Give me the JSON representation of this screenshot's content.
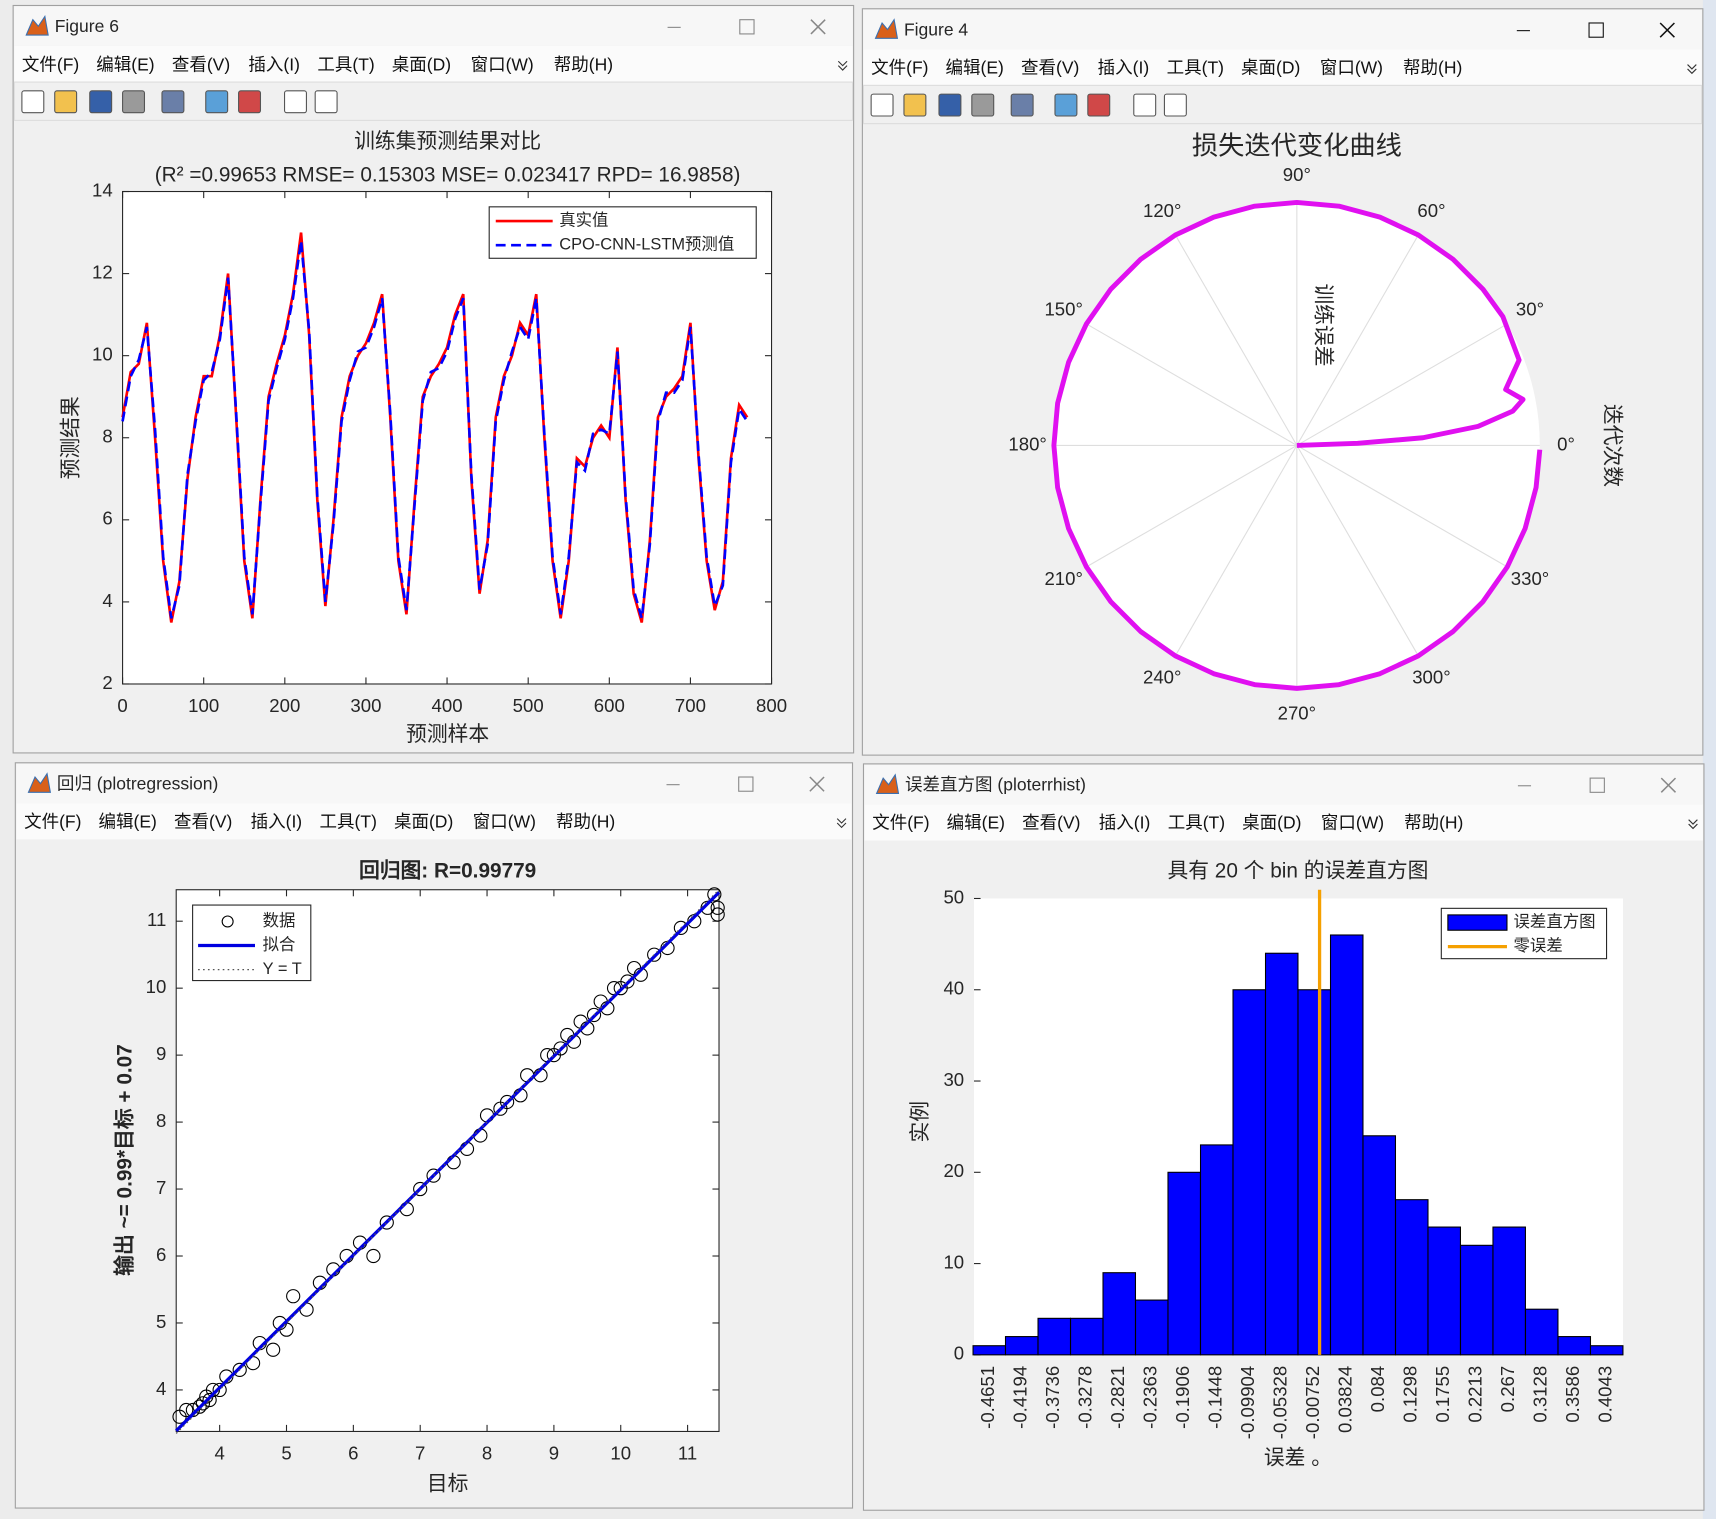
{
  "windows": [
    {
      "title": "Figure 6"
    },
    {
      "title": "Figure 4"
    },
    {
      "title": "回归 (plotregression)"
    },
    {
      "title": "误差直方图 (ploterrhist)"
    }
  ],
  "menu": [
    "文件(F)",
    "编辑(E)",
    "查看(V)",
    "插入(I)",
    "工具(T)",
    "桌面(D)",
    "窗口(W)",
    "帮助(H)"
  ],
  "chart_data": [
    {
      "type": "line",
      "title": "训练集预测结果对比",
      "subtitle": "(R² =0.99653 RMSE= 0.15303 MSE= 0.023417 RPD= 16.9858)",
      "x_label": "预测样本",
      "y_label": "预测结果",
      "xlim": [
        0,
        800
      ],
      "xticks": [
        0,
        100,
        200,
        300,
        400,
        500,
        600,
        700,
        800
      ],
      "ylim": [
        2,
        14
      ],
      "yticks": [
        2,
        4,
        6,
        8,
        10,
        12,
        14
      ],
      "legend": "northeast",
      "x": [
        0,
        10,
        20,
        30,
        40,
        50,
        60,
        70,
        80,
        90,
        100,
        110,
        120,
        130,
        140,
        150,
        160,
        170,
        180,
        190,
        200,
        210,
        220,
        230,
        240,
        250,
        260,
        270,
        280,
        290,
        300,
        310,
        320,
        330,
        340,
        350,
        360,
        370,
        380,
        390,
        400,
        410,
        420,
        430,
        440,
        450,
        460,
        470,
        480,
        490,
        500,
        510,
        520,
        530,
        540,
        550,
        560,
        570,
        580,
        590,
        600,
        610,
        620,
        630,
        640,
        650,
        660,
        670,
        680,
        690,
        700,
        710,
        720,
        730,
        740,
        750,
        760,
        770
      ],
      "series": [
        {
          "name": "真实值",
          "color": "#ff0000",
          "style": "solid",
          "values": [
            8.5,
            9.6,
            9.8,
            10.8,
            8,
            5,
            3.5,
            4.5,
            7,
            8.5,
            9.5,
            9.5,
            10.5,
            12,
            8.5,
            5,
            3.6,
            6.5,
            9,
            9.8,
            10.5,
            11.5,
            13,
            10.5,
            6.5,
            3.9,
            6,
            8.5,
            9.5,
            10,
            10.3,
            10.8,
            11.5,
            8.5,
            5,
            3.7,
            6.5,
            9,
            9.5,
            9.8,
            10.2,
            11,
            11.5,
            7,
            4.2,
            5.5,
            8.5,
            9.5,
            10,
            10.8,
            10.5,
            11.5,
            8,
            5,
            3.6,
            5,
            7.5,
            7.3,
            8,
            8.3,
            8,
            10.2,
            6.5,
            4.2,
            3.5,
            5.5,
            8.5,
            9,
            9.2,
            9.5,
            10.8,
            7.5,
            5,
            3.8,
            4.5,
            7.5,
            8.8,
            8.5
          ]
        },
        {
          "name": "CPO-CNN-LSTM预测值",
          "color": "#0000ff",
          "style": "dashed",
          "values": [
            8.4,
            9.5,
            9.9,
            10.7,
            8.2,
            5.1,
            3.6,
            4.4,
            7.1,
            8.4,
            9.4,
            9.6,
            10.4,
            11.9,
            8.6,
            5.1,
            3.7,
            6.4,
            8.9,
            9.7,
            10.4,
            11.4,
            12.8,
            10.6,
            6.6,
            4.0,
            5.9,
            8.4,
            9.4,
            10.1,
            10.2,
            10.7,
            11.4,
            8.6,
            5.1,
            3.8,
            6.4,
            8.9,
            9.6,
            9.7,
            10.1,
            10.9,
            11.4,
            7.1,
            4.3,
            5.4,
            8.4,
            9.4,
            10.1,
            10.7,
            10.4,
            11.4,
            8.1,
            5.1,
            3.7,
            5.1,
            7.4,
            7.2,
            8.1,
            8.2,
            8.1,
            10.1,
            6.6,
            4.3,
            3.6,
            5.4,
            8.4,
            9.1,
            9.1,
            9.4,
            10.7,
            7.6,
            5.1,
            3.9,
            4.4,
            7.4,
            8.7,
            8.4
          ]
        }
      ]
    },
    {
      "type": "polar",
      "title": "损失迭代变化曲线",
      "r_label": "训练误差",
      "side_label": "迭代次数",
      "rlim": [
        0,
        1
      ],
      "color": "#e010f0",
      "thetaticks": [
        {
          "value": 0,
          "label": "0°"
        },
        {
          "value": 30,
          "label": "30°"
        },
        {
          "value": 60,
          "label": "60°"
        },
        {
          "value": 90,
          "label": "90°"
        },
        {
          "value": 120,
          "label": "120°"
        },
        {
          "value": 150,
          "label": "150°"
        },
        {
          "value": 180,
          "label": "180°"
        },
        {
          "value": 210,
          "label": "210°"
        },
        {
          "value": 240,
          "label": "240°"
        },
        {
          "value": 270,
          "label": "270°"
        },
        {
          "value": 300,
          "label": "300°"
        },
        {
          "value": 330,
          "label": "330°"
        }
      ],
      "theta": [
        0,
        2,
        3.5,
        6,
        9,
        11.5,
        15,
        21,
        32,
        40,
        50,
        60,
        70,
        80,
        90,
        100,
        110,
        120,
        130,
        140,
        150,
        160,
        170,
        180,
        190,
        200,
        210,
        220,
        230,
        240,
        250,
        260,
        270,
        280,
        290,
        300,
        310,
        320,
        330,
        340,
        350,
        359
      ],
      "r": [
        0,
        0.25,
        0.52,
        0.75,
        0.9,
        0.95,
        0.89,
        0.98,
        1,
        1,
        1,
        1,
        1,
        1,
        1,
        1,
        1,
        1,
        1,
        1,
        1,
        1,
        1,
        1,
        1,
        1,
        1,
        1,
        1,
        1,
        1,
        1,
        1,
        1,
        1,
        1,
        1,
        1,
        1,
        1,
        1,
        1
      ]
    },
    {
      "type": "scatter",
      "title": "回归图: R=0.99779",
      "x_label": "目标",
      "y_label": "输出 ~= 0.99*目标 + 0.07",
      "xlim": [
        3.35,
        11.47
      ],
      "xticks": [
        4,
        5,
        6,
        7,
        8,
        9,
        10,
        11
      ],
      "ylim": [
        3.38,
        11.47
      ],
      "yticks": [
        4,
        5,
        6,
        7,
        8,
        9,
        10,
        11
      ],
      "legend": "northwest",
      "series": [
        {
          "name": "数据",
          "kind": "markers",
          "color": "#000000",
          "x": [
            3.4,
            3.5,
            3.6,
            3.7,
            3.75,
            3.8,
            3.85,
            3.9,
            4.0,
            4.1,
            4.3,
            4.5,
            4.6,
            4.8,
            4.9,
            5.0,
            5.1,
            5.3,
            5.5,
            5.7,
            5.9,
            6.1,
            6.3,
            6.5,
            6.8,
            7.0,
            7.2,
            7.5,
            7.7,
            7.9,
            8.0,
            8.2,
            8.3,
            8.5,
            8.6,
            8.8,
            8.9,
            9.0,
            9.1,
            9.2,
            9.3,
            9.4,
            9.5,
            9.6,
            9.7,
            9.8,
            9.9,
            10.0,
            10.1,
            10.2,
            10.3,
            10.5,
            10.7,
            10.9,
            11.1,
            11.3,
            11.4,
            11.45,
            11.45
          ],
          "values": [
            3.6,
            3.7,
            3.7,
            3.75,
            3.8,
            3.9,
            3.85,
            4.0,
            4.0,
            4.2,
            4.3,
            4.4,
            4.7,
            4.6,
            5.0,
            4.9,
            5.4,
            5.2,
            5.6,
            5.8,
            6.0,
            6.2,
            6.0,
            6.5,
            6.7,
            7.0,
            7.2,
            7.4,
            7.6,
            7.8,
            8.1,
            8.2,
            8.3,
            8.4,
            8.7,
            8.7,
            9.0,
            9.0,
            9.1,
            9.3,
            9.2,
            9.5,
            9.4,
            9.6,
            9.8,
            9.7,
            10.0,
            10.0,
            10.1,
            10.3,
            10.2,
            10.5,
            10.6,
            10.9,
            11.0,
            11.2,
            11.4,
            11.2,
            11.1
          ]
        },
        {
          "name": "拟合",
          "kind": "line",
          "color": "#0000e0",
          "style": "solid",
          "x": [
            3.35,
            11.47
          ],
          "values": [
            3.39,
            11.43
          ]
        },
        {
          "name": "Y = T",
          "kind": "line",
          "color": "#555555",
          "style": "dotted",
          "x": [
            3.35,
            11.47
          ],
          "values": [
            3.35,
            11.47
          ]
        }
      ]
    },
    {
      "type": "bar",
      "title": "具有 20 个 bin 的误差直方图",
      "x_label": "误差 。",
      "y_label": "实例",
      "xlim": [
        -0.4866,
        0.4272
      ],
      "xticks": [
        -0.4651,
        -0.4194,
        -0.3736,
        -0.3278,
        -0.2821,
        -0.2363,
        -0.1906,
        -0.1448,
        -0.09904,
        -0.05328,
        -0.00752,
        0.03824,
        0.084,
        0.1298,
        0.1755,
        0.2213,
        0.267,
        0.3128,
        0.3586,
        0.4043
      ],
      "ylim": [
        0,
        50
      ],
      "yticks": [
        0,
        10,
        20,
        30,
        40,
        50
      ],
      "legend": "northeast",
      "series": [
        {
          "name": "误差直方图",
          "color": "#0000ff",
          "x": [
            -0.4651,
            -0.4194,
            -0.3736,
            -0.3278,
            -0.2821,
            -0.2363,
            -0.1906,
            -0.1448,
            -0.09904,
            -0.05328,
            -0.00752,
            0.03824,
            0.084,
            0.1298,
            0.1755,
            0.2213,
            0.267,
            0.3128,
            0.3586,
            0.4043
          ],
          "values": [
            1,
            2,
            4,
            4,
            9,
            6,
            20,
            23,
            40,
            44,
            40,
            46,
            24,
            17,
            14,
            12,
            14,
            5,
            2,
            1
          ]
        }
      ],
      "zero_line": {
        "name": "零误差",
        "color": "#f5a000",
        "value": 0
      }
    }
  ]
}
